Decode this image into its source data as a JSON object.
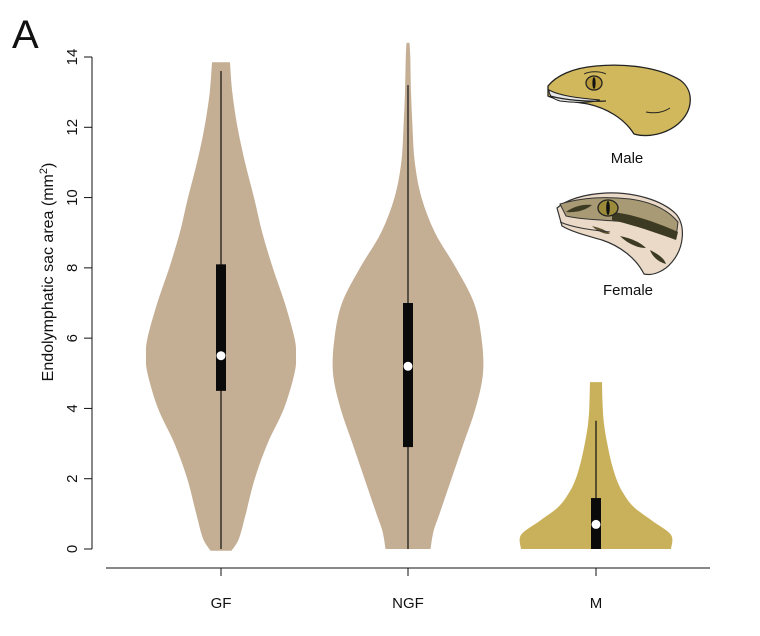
{
  "panel_label": "A",
  "chart_data": {
    "type": "violin",
    "ylabel": "Endolymphatic sac area (mm",
    "ylabel_superscript": "2",
    "ylabel_suffix": ")",
    "ylim": [
      0,
      14
    ],
    "yticks": [
      "0",
      "2",
      "4",
      "6",
      "8",
      "10",
      "12",
      "14"
    ],
    "grid": false,
    "categories": [
      "GF",
      "NGF",
      "M"
    ],
    "series": [
      {
        "category": "GF",
        "color": "#c4ae94",
        "median": 5.5,
        "q1": 4.5,
        "q3": 8.1,
        "whisker_low": 0,
        "whisker_high": 13.6,
        "min": -0.05,
        "max": 13.85,
        "density": [
          [
            -0.05,
            0.14
          ],
          [
            0.3,
            0.24
          ],
          [
            1,
            0.33
          ],
          [
            2,
            0.45
          ],
          [
            3,
            0.62
          ],
          [
            4,
            0.84
          ],
          [
            5,
            0.98
          ],
          [
            5.5,
            1.0
          ],
          [
            6,
            0.98
          ],
          [
            7,
            0.85
          ],
          [
            8,
            0.69
          ],
          [
            9,
            0.55
          ],
          [
            10,
            0.44
          ],
          [
            11,
            0.32
          ],
          [
            12,
            0.22
          ],
          [
            13,
            0.15
          ],
          [
            13.85,
            0.12
          ]
        ]
      },
      {
        "category": "NGF",
        "color": "#c4ae94",
        "median": 5.2,
        "q1": 2.9,
        "q3": 7.0,
        "whisker_low": 0,
        "whisker_high": 13.2,
        "min": 0,
        "max": 14.4,
        "density": [
          [
            0,
            0.3
          ],
          [
            0.5,
            0.34
          ],
          [
            1,
            0.42
          ],
          [
            2,
            0.58
          ],
          [
            3,
            0.74
          ],
          [
            4,
            0.9
          ],
          [
            5,
            1.0
          ],
          [
            6,
            0.98
          ],
          [
            7,
            0.88
          ],
          [
            8,
            0.64
          ],
          [
            9,
            0.36
          ],
          [
            10,
            0.18
          ],
          [
            11,
            0.09
          ],
          [
            12,
            0.06
          ],
          [
            13,
            0.04
          ],
          [
            14,
            0.03
          ],
          [
            14.4,
            0.02
          ]
        ]
      },
      {
        "category": "M",
        "color": "#c9b05a",
        "median": 0.7,
        "q1": 0,
        "q3": 1.45,
        "whisker_low": 0,
        "whisker_high": 3.65,
        "min": 0,
        "max": 4.75,
        "density": [
          [
            0,
            1.0
          ],
          [
            0.4,
            1.0
          ],
          [
            0.8,
            0.75
          ],
          [
            1.2,
            0.5
          ],
          [
            1.6,
            0.36
          ],
          [
            2,
            0.27
          ],
          [
            2.5,
            0.2
          ],
          [
            3,
            0.15
          ],
          [
            3.5,
            0.11
          ],
          [
            4,
            0.09
          ],
          [
            4.75,
            0.08
          ]
        ]
      }
    ],
    "legend": [
      {
        "label": "Male",
        "icon": "gecko-head-male-icon"
      },
      {
        "label": "Female",
        "icon": "gecko-head-female-icon"
      }
    ]
  }
}
